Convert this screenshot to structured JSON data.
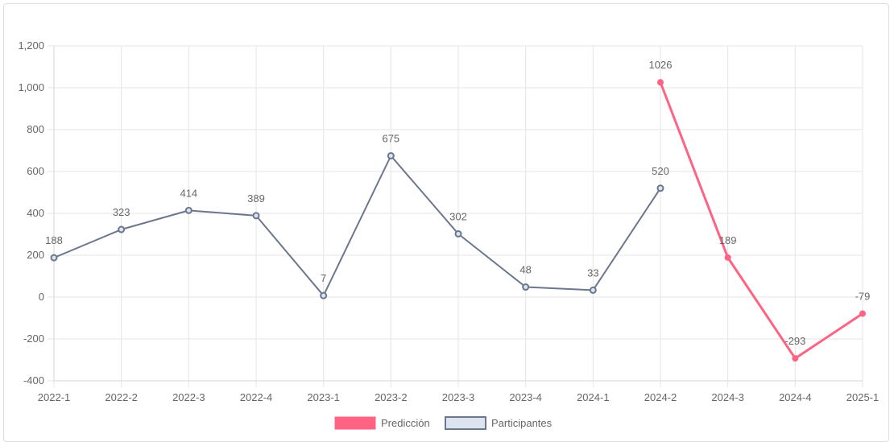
{
  "chart_data": {
    "type": "line",
    "categories": [
      "2022-1",
      "2022-2",
      "2022-3",
      "2022-4",
      "2023-1",
      "2023-2",
      "2023-3",
      "2023-4",
      "2024-1",
      "2024-2",
      "2024-3",
      "2024-4",
      "2025-1"
    ],
    "series": [
      {
        "name": "Predicción",
        "color": "#ff6384",
        "values": [
          null,
          null,
          null,
          null,
          null,
          null,
          null,
          null,
          null,
          1026,
          189,
          -293,
          -79
        ]
      },
      {
        "name": "Participantes",
        "color": "#6b778d",
        "fill": "#dde4ef",
        "values": [
          188,
          323,
          414,
          389,
          7,
          675,
          302,
          48,
          33,
          520,
          null,
          null,
          null
        ]
      }
    ],
    "ylim": [
      -400,
      1200
    ],
    "yticks": [
      -400,
      -200,
      0,
      200,
      400,
      600,
      800,
      1000,
      1200
    ],
    "ytick_labels": [
      "-400",
      "-200",
      "0",
      "200",
      "400",
      "600",
      "800",
      "1,000",
      "1,200"
    ],
    "grid": true,
    "legend_position": "bottom"
  }
}
